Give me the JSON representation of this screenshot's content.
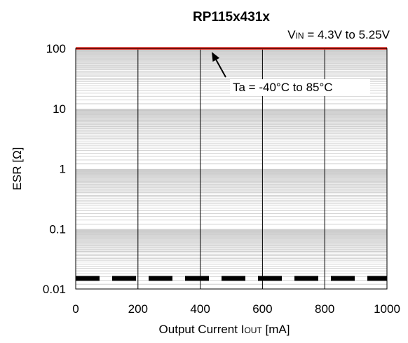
{
  "chart_data": {
    "type": "line",
    "title": "RP115x431x",
    "condition": {
      "prefix": "V",
      "subscript": "IN",
      "suffix": " = 4.3V  to 5.25V"
    },
    "xlabel": {
      "prefix": "Output Current  I",
      "subscript": "OUT",
      "suffix": " [mA]"
    },
    "ylabel": "ESR [Ω]",
    "x_scale": "linear",
    "y_scale": "log",
    "xlim": [
      0,
      1000
    ],
    "ylim": [
      0.01,
      100
    ],
    "x_ticks": [
      0,
      200,
      400,
      600,
      800,
      1000
    ],
    "x_tick_labels": [
      "0",
      "200",
      "400",
      "600",
      "800",
      "1000"
    ],
    "y_ticks": [
      0.01,
      0.1,
      1,
      10,
      100
    ],
    "y_tick_labels": [
      "0.01",
      "0.1",
      "1",
      "10",
      "100"
    ],
    "grid": {
      "vertical_major": true,
      "horizontal_minor": true
    },
    "series": [
      {
        "style": "solid",
        "color": "#e8261c",
        "x": [
          0,
          1000
        ],
        "y": [
          100,
          100
        ]
      },
      {
        "style": "dashed",
        "color": "#000000",
        "x": [
          0,
          1000
        ],
        "y": [
          0.015,
          0.015
        ]
      }
    ],
    "annotation": {
      "text": "Ta = -40°C to 85°C",
      "arrow_target": {
        "x": 445,
        "y": 100
      }
    }
  },
  "colors": {
    "background": "#ffffff",
    "frame": "#000000",
    "minor_grid": "#c8c8c8",
    "major_grid": "#000000"
  }
}
